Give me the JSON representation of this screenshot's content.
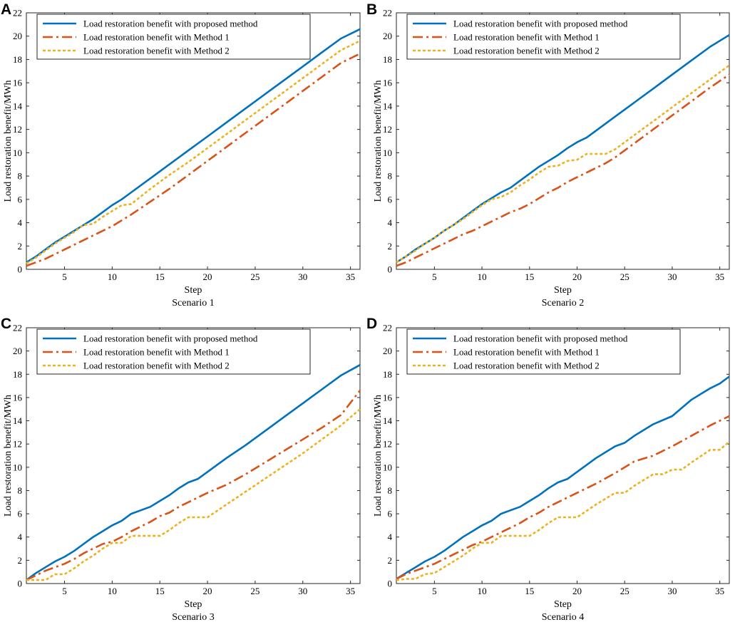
{
  "chart_data": [
    {
      "type": "line",
      "panel": "A",
      "title": "Scenario 1",
      "xlabel": "Step",
      "ylabel": "Load restoration benefit/MWh",
      "xlim": [
        1,
        36
      ],
      "ylim": [
        0,
        22
      ],
      "xticks": [
        5,
        10,
        15,
        20,
        25,
        30,
        35
      ],
      "yticks": [
        0,
        2,
        4,
        6,
        8,
        10,
        12,
        14,
        16,
        18,
        20,
        22
      ],
      "legend_position": "top-left",
      "series": [
        {
          "name": "Load restoration benefit with proposed method",
          "color": "#0072bd",
          "style": "solid",
          "x": [
            1,
            2,
            3,
            4,
            5,
            6,
            7,
            8,
            9,
            10,
            11,
            12,
            14,
            16,
            18,
            20,
            22,
            24,
            26,
            28,
            30,
            32,
            34,
            36
          ],
          "y": [
            0.6,
            1.1,
            1.7,
            2.3,
            2.8,
            3.3,
            3.8,
            4.3,
            4.9,
            5.5,
            6.0,
            6.6,
            7.8,
            9.0,
            10.2,
            11.4,
            12.6,
            13.8,
            15.0,
            16.2,
            17.4,
            18.6,
            19.8,
            20.6
          ]
        },
        {
          "name": "Load restoration benefit with Method 1",
          "color": "#d95319",
          "style": "dashdot",
          "x": [
            1,
            2,
            3,
            4,
            5,
            6,
            7,
            8,
            9,
            10,
            11,
            12,
            14,
            16,
            18,
            20,
            22,
            24,
            26,
            28,
            30,
            32,
            34,
            36
          ],
          "y": [
            0.3,
            0.6,
            0.9,
            1.3,
            1.7,
            2.1,
            2.5,
            2.9,
            3.3,
            3.7,
            4.2,
            4.7,
            5.8,
            6.9,
            8.1,
            9.3,
            10.5,
            11.7,
            12.9,
            14.1,
            15.3,
            16.5,
            17.7,
            18.5
          ]
        },
        {
          "name": "Load restoration benefit with Method 2",
          "color": "#edb120",
          "style": "dashed",
          "x": [
            1,
            2,
            3,
            4,
            5,
            6,
            7,
            8,
            9,
            10,
            11,
            12,
            14,
            16,
            18,
            20,
            22,
            24,
            26,
            28,
            30,
            32,
            34,
            36
          ],
          "y": [
            0.5,
            1.0,
            1.6,
            2.2,
            2.7,
            3.2,
            3.8,
            3.9,
            4.5,
            5.0,
            5.5,
            5.6,
            6.9,
            8.1,
            9.2,
            10.4,
            11.6,
            12.8,
            14.0,
            15.2,
            16.4,
            17.6,
            18.8,
            19.6
          ]
        }
      ]
    },
    {
      "type": "line",
      "panel": "B",
      "title": "Scenario 2",
      "xlabel": "Step",
      "ylabel": "Load restoration benefit/MWh",
      "xlim": [
        1,
        36
      ],
      "ylim": [
        0,
        22
      ],
      "xticks": [
        5,
        10,
        15,
        20,
        25,
        30,
        35
      ],
      "yticks": [
        0,
        2,
        4,
        6,
        8,
        10,
        12,
        14,
        16,
        18,
        20,
        22
      ],
      "legend_position": "top-left",
      "series": [
        {
          "name": "Load restoration benefit with proposed method",
          "color": "#0072bd",
          "style": "solid",
          "x": [
            1,
            2,
            3,
            4,
            5,
            6,
            7,
            8,
            9,
            10,
            11,
            12,
            13,
            14,
            15,
            16,
            17,
            18,
            19,
            20,
            21,
            22,
            24,
            26,
            28,
            30,
            32,
            34,
            36
          ],
          "y": [
            0.6,
            1.1,
            1.7,
            2.2,
            2.7,
            3.3,
            3.8,
            4.4,
            5.0,
            5.6,
            6.1,
            6.6,
            7.0,
            7.6,
            8.2,
            8.8,
            9.3,
            9.8,
            10.4,
            10.9,
            11.3,
            11.9,
            13.1,
            14.3,
            15.5,
            16.7,
            17.9,
            19.1,
            20.1
          ]
        },
        {
          "name": "Load restoration benefit with Method 1",
          "color": "#d95319",
          "style": "dashdot",
          "x": [
            1,
            2,
            3,
            4,
            5,
            6,
            7,
            8,
            9,
            10,
            11,
            12,
            13,
            14,
            15,
            16,
            17,
            18,
            19,
            20,
            21,
            22,
            23,
            24,
            26,
            28,
            30,
            32,
            34,
            36
          ],
          "y": [
            0.3,
            0.6,
            1.0,
            1.4,
            1.8,
            2.2,
            2.6,
            3.0,
            3.3,
            3.7,
            4.1,
            4.5,
            4.9,
            5.2,
            5.6,
            6.1,
            6.6,
            7.0,
            7.5,
            7.9,
            8.3,
            8.7,
            9.1,
            9.6,
            10.8,
            12.0,
            13.2,
            14.4,
            15.6,
            16.7
          ]
        },
        {
          "name": "Load restoration benefit with Method 2",
          "color": "#edb120",
          "style": "dashed",
          "x": [
            1,
            2,
            3,
            4,
            5,
            6,
            7,
            8,
            9,
            10,
            11,
            12,
            13,
            14,
            15,
            16,
            17,
            18,
            19,
            20,
            21,
            22,
            23,
            24,
            26,
            28,
            30,
            32,
            34,
            36
          ],
          "y": [
            0.6,
            1.1,
            1.6,
            2.2,
            2.7,
            3.3,
            3.8,
            4.3,
            4.9,
            5.5,
            6.0,
            6.2,
            6.6,
            7.2,
            7.7,
            8.3,
            8.8,
            8.9,
            9.3,
            9.4,
            9.9,
            9.9,
            9.9,
            10.3,
            11.5,
            12.7,
            13.9,
            15.1,
            16.3,
            17.5
          ]
        }
      ]
    },
    {
      "type": "line",
      "panel": "C",
      "title": "Scenario 3",
      "xlabel": "Step",
      "ylabel": "Load restoration benefit/MWh",
      "xlim": [
        1,
        36
      ],
      "ylim": [
        0,
        22
      ],
      "xticks": [
        5,
        10,
        15,
        20,
        25,
        30,
        35
      ],
      "yticks": [
        0,
        2,
        4,
        6,
        8,
        10,
        12,
        14,
        16,
        18,
        20,
        22
      ],
      "legend_position": "top-left",
      "series": [
        {
          "name": "Load restoration benefit with proposed method",
          "color": "#0072bd",
          "style": "solid",
          "x": [
            1,
            2,
            3,
            4,
            5,
            6,
            7,
            8,
            9,
            10,
            11,
            12,
            13,
            14,
            15,
            16,
            17,
            18,
            19,
            20,
            21,
            22,
            24,
            26,
            28,
            30,
            32,
            34,
            36
          ],
          "y": [
            0.3,
            0.9,
            1.4,
            1.9,
            2.3,
            2.8,
            3.4,
            4.0,
            4.5,
            5.0,
            5.4,
            6.0,
            6.3,
            6.6,
            7.1,
            7.6,
            8.2,
            8.7,
            9.0,
            9.6,
            10.2,
            10.8,
            11.9,
            13.1,
            14.3,
            15.5,
            16.7,
            17.9,
            18.8
          ]
        },
        {
          "name": "Load restoration benefit with Method 1",
          "color": "#d95319",
          "style": "dashdot",
          "x": [
            1,
            2,
            3,
            4,
            5,
            6,
            7,
            8,
            9,
            10,
            11,
            12,
            13,
            14,
            15,
            16,
            17,
            18,
            19,
            20,
            22,
            24,
            26,
            28,
            30,
            32,
            34,
            36
          ],
          "y": [
            0.3,
            0.7,
            1.1,
            1.4,
            1.7,
            2.1,
            2.6,
            3.0,
            3.4,
            3.6,
            4.0,
            4.5,
            4.9,
            5.3,
            5.8,
            6.1,
            6.6,
            7.0,
            7.4,
            7.8,
            8.5,
            9.4,
            10.4,
            11.4,
            12.4,
            13.4,
            14.5,
            16.6
          ]
        },
        {
          "name": "Load restoration benefit with Method 2",
          "color": "#edb120",
          "style": "dashed",
          "x": [
            1,
            2,
            3,
            4,
            5,
            6,
            7,
            8,
            9,
            10,
            11,
            12,
            13,
            14,
            15,
            16,
            17,
            18,
            19,
            20,
            22,
            24,
            26,
            28,
            30,
            32,
            34,
            36
          ],
          "y": [
            0.3,
            0.3,
            0.3,
            0.8,
            0.8,
            1.3,
            1.9,
            2.4,
            3.0,
            3.5,
            3.5,
            4.1,
            4.1,
            4.1,
            4.1,
            4.6,
            5.2,
            5.7,
            5.7,
            5.7,
            6.8,
            7.9,
            9.0,
            10.1,
            11.2,
            12.4,
            13.6,
            15.0
          ]
        }
      ]
    },
    {
      "type": "line",
      "panel": "D",
      "title": "Scenario 4",
      "xlabel": "Step",
      "ylabel": "Load restoration benefit/MWh",
      "xlim": [
        1,
        36
      ],
      "ylim": [
        0,
        22
      ],
      "xticks": [
        5,
        10,
        15,
        20,
        25,
        30,
        35
      ],
      "yticks": [
        0,
        2,
        4,
        6,
        8,
        10,
        12,
        14,
        16,
        18,
        20,
        22
      ],
      "legend_position": "top-left",
      "series": [
        {
          "name": "Load restoration benefit with proposed method",
          "color": "#0072bd",
          "style": "solid",
          "x": [
            1,
            2,
            3,
            4,
            5,
            6,
            7,
            8,
            9,
            10,
            11,
            12,
            13,
            14,
            15,
            16,
            17,
            18,
            19,
            20,
            22,
            24,
            25,
            26,
            28,
            30,
            32,
            34,
            35,
            36
          ],
          "y": [
            0.4,
            0.9,
            1.4,
            1.9,
            2.3,
            2.8,
            3.4,
            4.0,
            4.5,
            5.0,
            5.4,
            6.0,
            6.3,
            6.6,
            7.1,
            7.6,
            8.2,
            8.7,
            9.0,
            9.6,
            10.8,
            11.8,
            12.1,
            12.7,
            13.7,
            14.4,
            15.8,
            16.8,
            17.2,
            17.8
          ]
        },
        {
          "name": "Load restoration benefit with Method 1",
          "color": "#d95319",
          "style": "dashdot",
          "x": [
            1,
            2,
            3,
            4,
            5,
            6,
            7,
            8,
            9,
            10,
            11,
            12,
            13,
            14,
            15,
            16,
            17,
            18,
            19,
            20,
            22,
            24,
            26,
            28,
            30,
            32,
            34,
            36
          ],
          "y": [
            0.4,
            0.8,
            1.1,
            1.4,
            1.7,
            2.1,
            2.5,
            2.9,
            3.3,
            3.6,
            4.0,
            4.4,
            4.8,
            5.2,
            5.7,
            6.1,
            6.6,
            7.0,
            7.4,
            7.8,
            8.6,
            9.5,
            10.5,
            11.0,
            11.8,
            12.7,
            13.6,
            14.4
          ]
        },
        {
          "name": "Load restoration benefit with Method 2",
          "color": "#edb120",
          "style": "dashed",
          "x": [
            1,
            2,
            3,
            4,
            5,
            6,
            7,
            8,
            9,
            10,
            11,
            12,
            13,
            14,
            15,
            16,
            17,
            18,
            19,
            20,
            22,
            24,
            25,
            26,
            28,
            29,
            30,
            31,
            32,
            34,
            35,
            36
          ],
          "y": [
            0.3,
            0.4,
            0.4,
            0.8,
            0.9,
            1.4,
            1.9,
            2.4,
            3.0,
            3.5,
            3.5,
            4.1,
            4.1,
            4.1,
            4.1,
            4.6,
            5.2,
            5.7,
            5.7,
            5.7,
            6.8,
            7.8,
            7.8,
            8.4,
            9.4,
            9.4,
            9.8,
            9.8,
            10.4,
            11.5,
            11.5,
            12.2
          ]
        }
      ]
    }
  ]
}
